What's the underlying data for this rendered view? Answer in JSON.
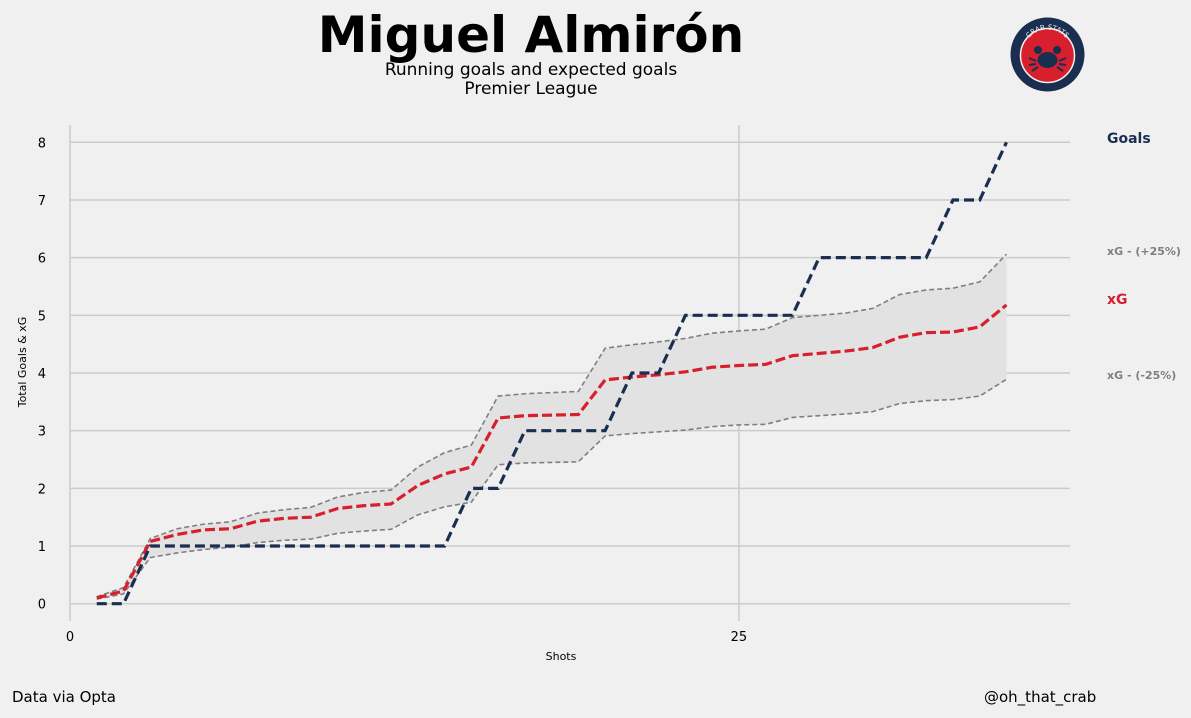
{
  "header": {
    "title": "Miguel Almirón",
    "subtitle_1": "Running goals and expected goals",
    "subtitle_2": "Premier League",
    "logo_text": "CRAB STATS"
  },
  "footer": {
    "source": "Data via Opta",
    "handle": "@oh_that_crab"
  },
  "colors": {
    "background": "#f0f0f0",
    "goals": "#1a2e50",
    "xg": "#d71f2d",
    "band_line": "#7f7f7f",
    "band_fill": "#e2e2e2",
    "grid": "#cbcbcb"
  },
  "chart_data": {
    "type": "line",
    "xlabel": "Shots",
    "ylabel": "Total Goals & xG",
    "xlim": [
      0,
      37
    ],
    "ylim": [
      -0.3,
      8.3
    ],
    "xticks": [
      0,
      25
    ],
    "yticks": [
      0,
      1,
      2,
      3,
      4,
      5,
      6,
      7,
      8
    ],
    "grid": true,
    "legend_placement": "right",
    "x": [
      1,
      2,
      3,
      4,
      5,
      6,
      7,
      8,
      9,
      10,
      11,
      12,
      13,
      14,
      15,
      16,
      17,
      18,
      19,
      20,
      21,
      22,
      23,
      24,
      25,
      26,
      27,
      28,
      29,
      30,
      31,
      32,
      33,
      34,
      35
    ],
    "series": [
      {
        "name": "Goals",
        "style": "dashed",
        "values": [
          0,
          0,
          1,
          1,
          1,
          1,
          1,
          1,
          1,
          1,
          1,
          1,
          1,
          1,
          2,
          2,
          3,
          3,
          3,
          3,
          4,
          4,
          5,
          5,
          5,
          5,
          5,
          6,
          6,
          6,
          6,
          6,
          7,
          7,
          8
        ]
      },
      {
        "name": "xG",
        "style": "dashed",
        "values": [
          0.1,
          0.22,
          1.08,
          1.2,
          1.28,
          1.3,
          1.43,
          1.48,
          1.5,
          1.65,
          1.7,
          1.73,
          2.05,
          2.25,
          2.37,
          3.22,
          3.26,
          3.27,
          3.28,
          3.88,
          3.93,
          3.97,
          4.02,
          4.1,
          4.13,
          4.15,
          4.3,
          4.34,
          4.38,
          4.44,
          4.62,
          4.7,
          4.71,
          4.8,
          5.18
        ]
      },
      {
        "name": "xG - (+25%)",
        "style": "dashed-thin",
        "values": [
          0.12,
          0.28,
          1.13,
          1.3,
          1.38,
          1.42,
          1.57,
          1.63,
          1.67,
          1.85,
          1.93,
          1.97,
          2.37,
          2.62,
          2.75,
          3.6,
          3.64,
          3.66,
          3.68,
          4.43,
          4.49,
          4.54,
          4.6,
          4.69,
          4.73,
          4.76,
          4.96,
          5.0,
          5.04,
          5.12,
          5.36,
          5.44,
          5.47,
          5.58,
          6.06
        ]
      },
      {
        "name": "xG - (-25%)",
        "style": "dashed-thin",
        "values": [
          0.08,
          0.17,
          0.8,
          0.88,
          0.94,
          0.98,
          1.06,
          1.1,
          1.12,
          1.22,
          1.26,
          1.29,
          1.54,
          1.68,
          1.76,
          2.41,
          2.44,
          2.45,
          2.46,
          2.91,
          2.95,
          2.98,
          3.01,
          3.07,
          3.1,
          3.11,
          3.23,
          3.26,
          3.29,
          3.33,
          3.47,
          3.52,
          3.54,
          3.6,
          3.89
        ]
      }
    ]
  }
}
